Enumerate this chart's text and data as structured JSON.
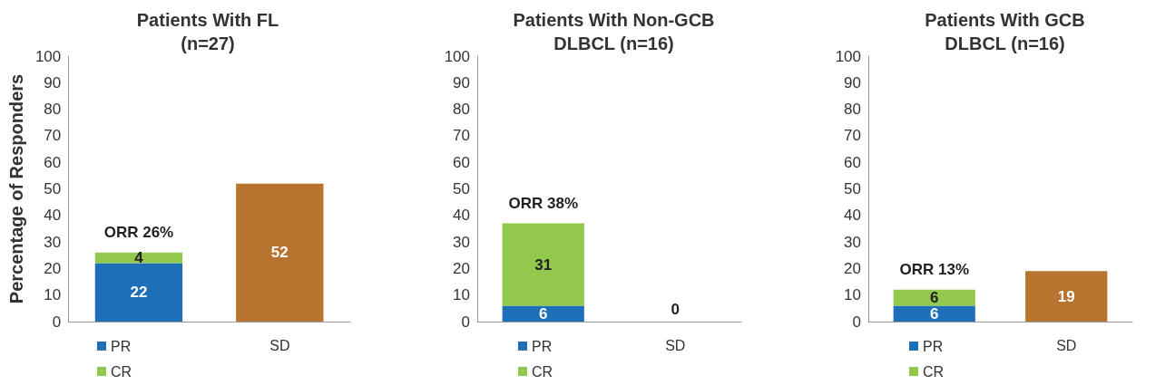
{
  "chart_data": [
    {
      "type": "bar",
      "title": "Patients With FL\n(n=27)",
      "ylabel": "Percentage of Responders",
      "categories": [
        null,
        "SD"
      ],
      "stacked": true,
      "data_labels": true,
      "legend": "bottom left",
      "ylim": [
        0,
        100
      ],
      "yticks": [
        0,
        10,
        20,
        30,
        40,
        50,
        60,
        70,
        80,
        90,
        100
      ],
      "grid": false,
      "series": [
        {
          "name": "PR",
          "color": "#1f6fb8",
          "values": [
            22,
            null
          ]
        },
        {
          "name": "CR",
          "color": "#92c84c",
          "values": [
            4,
            null
          ]
        },
        {
          "color": "#b8732e",
          "values": [
            null,
            52
          ]
        }
      ],
      "annotations": [
        {
          "text": "ORR 26%",
          "y": 26
        }
      ]
    },
    {
      "type": "bar",
      "title": "Patients With Non-GCB\nDLBCL (n=16)",
      "categories": [
        null,
        "SD"
      ],
      "stacked": true,
      "data_labels": true,
      "legend": "bottom left",
      "ylim": [
        0,
        100
      ],
      "yticks": [
        0,
        10,
        20,
        30,
        40,
        50,
        60,
        70,
        80,
        90,
        100
      ],
      "grid": false,
      "series": [
        {
          "name": "PR",
          "color": "#1f6fb8",
          "values": [
            6,
            null
          ]
        },
        {
          "name": "CR",
          "color": "#92c84c",
          "values": [
            31,
            null
          ]
        },
        {
          "color": "#b8732e",
          "values": [
            null,
            0
          ]
        }
      ],
      "annotations": [
        {
          "text": "ORR 38%",
          "y": 37
        }
      ]
    },
    {
      "type": "bar",
      "title": "Patients With GCB\nDLBCL (n=16)",
      "categories": [
        null,
        "SD"
      ],
      "stacked": true,
      "data_labels": true,
      "legend": "bottom left",
      "ylim": [
        0,
        100
      ],
      "yticks": [
        0,
        10,
        20,
        30,
        40,
        50,
        60,
        70,
        80,
        90,
        100
      ],
      "grid": false,
      "series": [
        {
          "name": "PR",
          "color": "#1f6fb8",
          "values": [
            6,
            null
          ]
        },
        {
          "name": "CR",
          "color": "#92c84c",
          "values": [
            6,
            null
          ]
        },
        {
          "color": "#b8732e",
          "values": [
            null,
            19
          ]
        }
      ],
      "annotations": [
        {
          "text": "ORR 13%",
          "y": 12
        }
      ]
    }
  ]
}
